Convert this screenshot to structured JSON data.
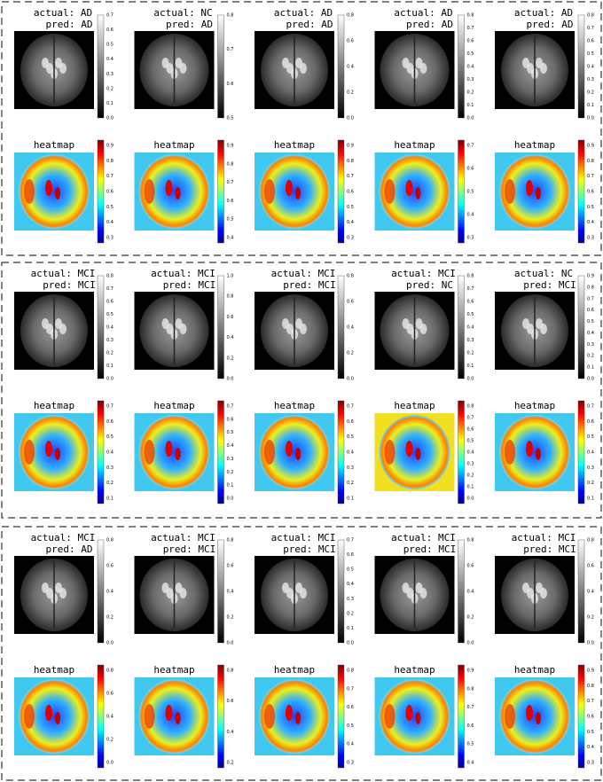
{
  "panels": [
    {
      "columns": [
        {
          "actual": "actual: AD",
          "pred": "pred: AD",
          "gray_ticks": [
            "0.0",
            "0.1",
            "0.2",
            "0.3",
            "0.4",
            "0.5",
            "0.6",
            "0.7"
          ],
          "heatmap_title": "heatmap",
          "heat_ticks": [
            "0.3",
            "0.4",
            "0.5",
            "0.6",
            "0.7",
            "0.8",
            "0.9"
          ]
        },
        {
          "actual": "actual: NC",
          "pred": "pred: AD",
          "gray_ticks": [
            "0.5",
            "0.6",
            "0.7",
            "0.8"
          ],
          "heatmap_title": "heatmap",
          "heat_ticks": [
            "0.4",
            "0.5",
            "0.6",
            "0.7",
            "0.8",
            "0.9"
          ]
        },
        {
          "actual": "actual: AD",
          "pred": "pred: AD",
          "gray_ticks": [
            "0.0",
            "0.2",
            "0.4",
            "0.6",
            "0.8"
          ],
          "heatmap_title": "heatmap",
          "heat_ticks": [
            "0.3",
            "0.4",
            "0.5",
            "0.6",
            "0.7",
            "0.8",
            "0.9"
          ]
        },
        {
          "actual": "actual: AD",
          "pred": "pred: AD",
          "gray_ticks": [
            "0.0",
            "0.1",
            "0.2",
            "0.3",
            "0.4",
            "0.5",
            "0.6",
            "0.7",
            "0.8"
          ],
          "heatmap_title": "heatmap",
          "heat_ticks": [
            "0.3",
            "0.4",
            "0.5",
            "0.6",
            "0.7"
          ]
        },
        {
          "actual": "actual: AD",
          "pred": "pred: AD",
          "gray_ticks": [
            "0.0",
            "0.1",
            "0.2",
            "0.3",
            "0.4",
            "0.5",
            "0.6",
            "0.7",
            "0.8"
          ],
          "heatmap_title": "heatmap",
          "heat_ticks": [
            "0.3",
            "0.4",
            "0.5",
            "0.6",
            "0.7",
            "0.8",
            "0.9"
          ]
        }
      ]
    },
    {
      "columns": [
        {
          "actual": "actual: MCI",
          "pred": "pred: MCI",
          "gray_ticks": [
            "0.0",
            "0.1",
            "0.2",
            "0.3",
            "0.4",
            "0.5",
            "0.6",
            "0.7",
            "0.8"
          ],
          "heatmap_title": "heatmap",
          "heat_ticks": [
            "0.1",
            "0.2",
            "0.3",
            "0.4",
            "0.5",
            "0.6",
            "0.7"
          ]
        },
        {
          "actual": "actual: MCI",
          "pred": "pred: MCI",
          "gray_ticks": [
            "0.0",
            "0.2",
            "0.4",
            "0.6",
            "0.8",
            "1.0"
          ],
          "heatmap_title": "heatmap",
          "heat_ticks": [
            "0.0",
            "0.1",
            "0.2",
            "0.3",
            "0.4",
            "0.5",
            "0.6",
            "0.7"
          ]
        },
        {
          "actual": "actual: MCI",
          "pred": "pred: MCI",
          "gray_ticks": [
            "0.0",
            "0.2",
            "0.4",
            "0.6",
            "0.8"
          ],
          "heatmap_title": "heatmap",
          "heat_ticks": [
            "0.1",
            "0.2",
            "0.3",
            "0.4",
            "0.5",
            "0.6",
            "0.7"
          ]
        },
        {
          "actual": "actual: MCI",
          "pred": "pred: NC",
          "gray_ticks": [
            "0.0",
            "0.1",
            "0.2",
            "0.3",
            "0.4",
            "0.5",
            "0.6",
            "0.7",
            "0.8"
          ],
          "heatmap_title": "heatmap",
          "heat_ticks": [
            "0.0",
            "0.1",
            "0.2",
            "0.3",
            "0.4",
            "0.5",
            "0.6",
            "0.7",
            "0.8"
          ]
        },
        {
          "actual": "actual: NC",
          "pred": "pred: MCI",
          "gray_ticks": [
            "0.0",
            "0.1",
            "0.2",
            "0.3",
            "0.4",
            "0.5",
            "0.6",
            "0.7",
            "0.8",
            "0.9"
          ],
          "heatmap_title": "heatmap",
          "heat_ticks": [
            "0.1",
            "0.2",
            "0.3",
            "0.4",
            "0.5",
            "0.6",
            "0.7"
          ]
        }
      ]
    },
    {
      "columns": [
        {
          "actual": "actual: MCI",
          "pred": "pred: AD",
          "gray_ticks": [
            "0.0",
            "0.2",
            "0.4",
            "0.6",
            "0.8"
          ],
          "heatmap_title": "heatmap",
          "heat_ticks": [
            "0.0",
            "0.2",
            "0.4",
            "0.6",
            "0.8"
          ]
        },
        {
          "actual": "actual: MCI",
          "pred": "pred: MCI",
          "gray_ticks": [
            "0.0",
            "0.2",
            "0.4",
            "0.6",
            "0.8"
          ],
          "heatmap_title": "heatmap",
          "heat_ticks": [
            "0.2",
            "0.4",
            "0.6",
            "0.8"
          ]
        },
        {
          "actual": "actual: MCI",
          "pred": "pred: MCI",
          "gray_ticks": [
            "0.0",
            "0.1",
            "0.2",
            "0.3",
            "0.4",
            "0.5",
            "0.6",
            "0.7"
          ],
          "heatmap_title": "heatmap",
          "heat_ticks": [
            "0.3",
            "0.4",
            "0.5",
            "0.6",
            "0.7",
            "0.8"
          ]
        },
        {
          "actual": "actual: MCI",
          "pred": "pred: MCI",
          "gray_ticks": [
            "0.0",
            "0.2",
            "0.4",
            "0.6",
            "0.8"
          ],
          "heatmap_title": "heatmap",
          "heat_ticks": [
            "0.4",
            "0.5",
            "0.6",
            "0.7",
            "0.8",
            "0.9"
          ]
        },
        {
          "actual": "actual: MCI",
          "pred": "pred: MCI",
          "gray_ticks": [
            "0.0",
            "0.2",
            "0.4",
            "0.6",
            "0.8"
          ],
          "heatmap_title": "heatmap",
          "heat_ticks": [
            "0.3",
            "0.4",
            "0.5",
            "0.6",
            "0.7",
            "0.8",
            "0.9"
          ]
        }
      ]
    }
  ]
}
